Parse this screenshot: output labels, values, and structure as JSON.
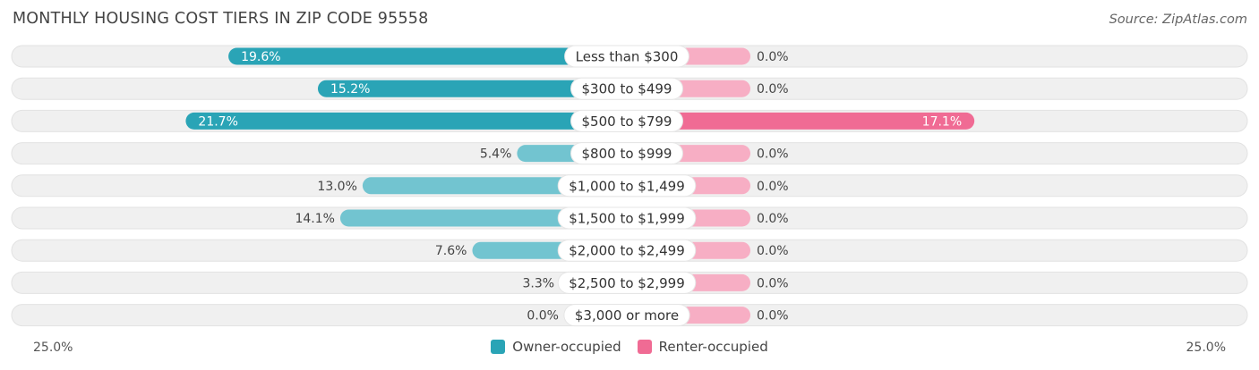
{
  "title": "MONTHLY HOUSING COST TIERS IN ZIP CODE 95558",
  "source": "Source: ZipAtlas.com",
  "colors": {
    "owner_strong": "#2aa4b6",
    "owner_light": "#72c4d0",
    "renter_strong": "#f06b94",
    "renter_light": "#f7aec4",
    "track": "#f0f0f0"
  },
  "chart_data": {
    "type": "bar",
    "orientation": "diverging-horizontal",
    "title": "MONTHLY HOUSING COST TIERS IN ZIP CODE 95558",
    "categories": [
      "Less than $300",
      "$300 to $499",
      "$500 to $799",
      "$800 to $999",
      "$1,000 to $1,499",
      "$1,500 to $1,999",
      "$2,000 to $2,499",
      "$2,500 to $2,999",
      "$3,000 or more"
    ],
    "series": [
      {
        "name": "Owner-occupied",
        "values": [
          19.6,
          15.2,
          21.7,
          5.4,
          13.0,
          14.1,
          7.6,
          3.3,
          0.0
        ],
        "labels": [
          "19.6%",
          "15.2%",
          "21.7%",
          "5.4%",
          "13.0%",
          "14.1%",
          "7.6%",
          "3.3%",
          "0.0%"
        ]
      },
      {
        "name": "Renter-occupied",
        "values": [
          0.0,
          0.0,
          17.1,
          0.0,
          0.0,
          0.0,
          0.0,
          0.0,
          0.0
        ],
        "labels": [
          "0.0%",
          "0.0%",
          "17.1%",
          "0.0%",
          "0.0%",
          "0.0%",
          "0.0%",
          "0.0%",
          "0.0%"
        ]
      }
    ],
    "xlim": [
      -25,
      25
    ],
    "axis_left_label": "25.0%",
    "axis_right_label": "25.0%",
    "legend_position": "bottom-center"
  }
}
